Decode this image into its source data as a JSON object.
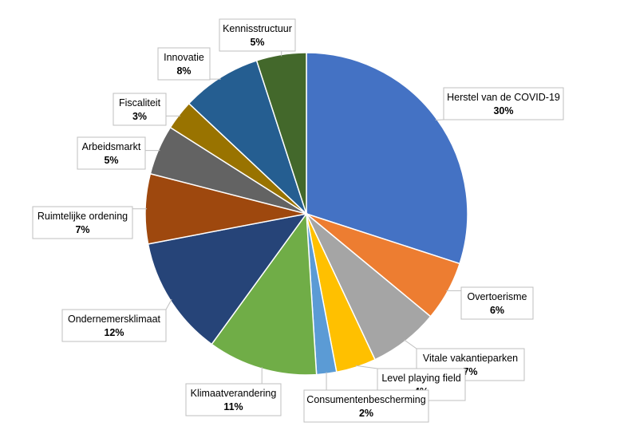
{
  "chart_data": {
    "type": "pie",
    "title": "",
    "slices": [
      {
        "label": "Herstel van de COVID-19",
        "value": 30,
        "display": "30%",
        "color": "#4472C4"
      },
      {
        "label": "Overtoerisme",
        "value": 6,
        "display": "6%",
        "color": "#ED7D31"
      },
      {
        "label": "Vitale vakantieparken",
        "value": 7,
        "display": "7%",
        "color": "#A5A5A5"
      },
      {
        "label": "Level playing field",
        "value": 4,
        "display": "4%",
        "color": "#FFC000"
      },
      {
        "label": "Consumentenbescherming",
        "value": 2,
        "display": "2%",
        "color": "#5B9BD5"
      },
      {
        "label": "Klimaatverandering",
        "value": 11,
        "display": "11%",
        "color": "#70AD47"
      },
      {
        "label": "Ondernemersklimaat",
        "value": 12,
        "display": "12%",
        "color": "#264478"
      },
      {
        "label": "Ruimtelijke ordening",
        "value": 7,
        "display": "7%",
        "color": "#9E480E"
      },
      {
        "label": "Arbeidsmarkt",
        "value": 5,
        "display": "5%",
        "color": "#636363"
      },
      {
        "label": "Fiscaliteit",
        "value": 3,
        "display": "3%",
        "color": "#997300"
      },
      {
        "label": "Innovatie",
        "value": 8,
        "display": "8%",
        "color": "#255E91"
      },
      {
        "label": "Kennisstructuur",
        "value": 5,
        "display": "5%",
        "color": "#43682B"
      }
    ],
    "legend": "none",
    "data_labels": "callouts"
  }
}
